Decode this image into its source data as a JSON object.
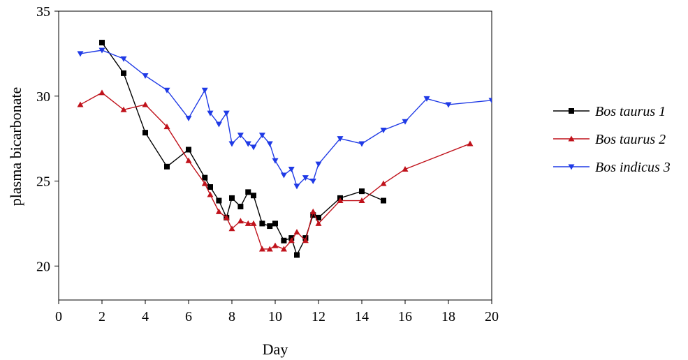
{
  "chart_data": {
    "type": "line",
    "title": "",
    "xlabel": "Day",
    "ylabel": "plasma bicarbonate",
    "xlim": [
      0,
      20
    ],
    "ylim": [
      18,
      35
    ],
    "xticks": [
      0,
      2,
      4,
      6,
      8,
      10,
      12,
      14,
      16,
      18,
      20
    ],
    "yticks": [
      20,
      25,
      30,
      35
    ],
    "grid": false,
    "legend_position": "right",
    "series": [
      {
        "name": "Bos taurus 1",
        "color": "#000000",
        "marker": "square",
        "x": [
          2,
          3,
          4,
          5,
          6,
          6.75,
          7,
          7.4,
          7.75,
          8,
          8.4,
          8.75,
          9,
          9.4,
          9.75,
          10,
          10.4,
          10.75,
          11,
          11.4,
          11.75,
          12,
          13,
          14,
          15
        ],
        "y": [
          33.15,
          31.35,
          27.85,
          25.85,
          26.85,
          25.2,
          24.65,
          23.85,
          22.85,
          24.0,
          23.5,
          24.35,
          24.15,
          22.5,
          22.35,
          22.5,
          21.5,
          21.65,
          20.65,
          21.65,
          23.0,
          22.85,
          24.0,
          24.4,
          23.85
        ]
      },
      {
        "name": "Bos taurus 2",
        "color": "#c0121b",
        "marker": "triangle-up",
        "x": [
          1,
          2,
          3,
          4,
          5,
          6,
          6.75,
          7,
          7.4,
          7.75,
          8,
          8.4,
          8.75,
          9,
          9.4,
          9.75,
          10,
          10.4,
          10.75,
          11,
          11.4,
          11.75,
          12,
          13,
          14,
          15,
          16,
          19
        ],
        "y": [
          29.5,
          30.2,
          29.2,
          29.5,
          28.2,
          26.2,
          24.85,
          24.2,
          23.2,
          22.85,
          22.2,
          22.65,
          22.5,
          22.5,
          21.0,
          21.0,
          21.2,
          21.0,
          21.5,
          22.0,
          21.5,
          23.2,
          22.5,
          23.85,
          23.85,
          24.85,
          25.7,
          27.2
        ]
      },
      {
        "name": "Bos indicus 3",
        "color": "#1f3ae6",
        "marker": "triangle-down",
        "x": [
          1,
          2,
          3,
          4,
          5,
          6,
          6.75,
          7,
          7.4,
          7.75,
          8,
          8.4,
          8.75,
          9,
          9.4,
          9.75,
          10,
          10.4,
          10.75,
          11,
          11.4,
          11.75,
          12,
          13,
          14,
          15,
          16,
          17,
          18,
          20
        ],
        "y": [
          32.5,
          32.7,
          32.2,
          31.2,
          30.35,
          28.7,
          30.35,
          29.0,
          28.35,
          29.0,
          27.2,
          27.7,
          27.2,
          27.0,
          27.7,
          27.2,
          26.2,
          25.35,
          25.7,
          24.7,
          25.2,
          25.0,
          26.0,
          27.5,
          27.2,
          28.0,
          28.5,
          29.85,
          29.5,
          29.75
        ]
      }
    ]
  }
}
